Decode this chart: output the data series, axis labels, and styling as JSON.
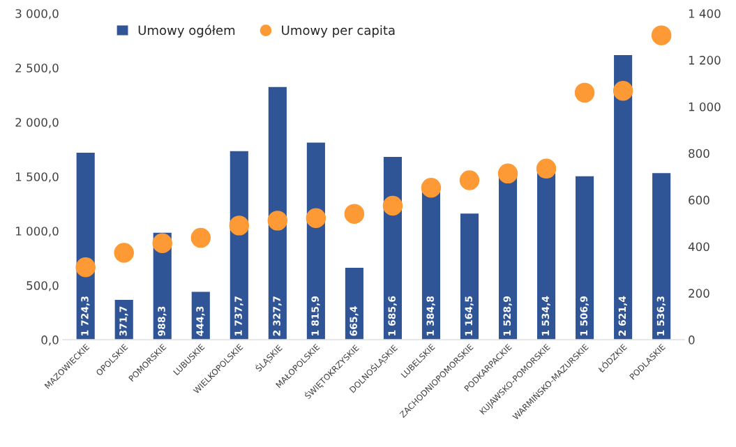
{
  "chart_data": {
    "type": "bar",
    "categories": [
      "MAZOWIECKIE",
      "OPOLSKIE",
      "POMORSKIE",
      "LUBUSKIE",
      "WIELKOPOLSKIE",
      "ŚLĄSKIE",
      "MAŁOPOLSKIE",
      "ŚWIĘTOKRZYSKIE",
      "DOLNOŚLĄSKIE",
      "LUBELSKIE",
      "ZACHODNIOPOMORSKIE",
      "PODKARPACKIE",
      "KUJAWSKO-POMORSKIE",
      "WARMIŃSKO-MAZURSKIE",
      "ŁÓDZKIE",
      "PODLASKIE"
    ],
    "series": [
      {
        "name": "Umowy ogółem",
        "color": "#2f5597",
        "values": [
          1724.3,
          371.7,
          988.3,
          444.3,
          1737.7,
          2327.7,
          1815.9,
          665.4,
          1685.6,
          1384.8,
          1164.5,
          1528.9,
          1534.4,
          1506.9,
          2621.4,
          1536.3
        ],
        "value_labels": [
          "1 724,3",
          "371,7",
          "988,3",
          "444,3",
          "1 737,7",
          "2 327,7",
          "1 815,9",
          "665,4",
          "1 685,6",
          "1 384,8",
          "1 164,5",
          "1 528,9",
          "1 534,4",
          "1 506,9",
          "2 621,4",
          "1 536,3"
        ]
      },
      {
        "name": "Umowy per capita",
        "type": "scatter",
        "axis": "y2",
        "color": "#fd9a35",
        "values": [
          311,
          373,
          414,
          437,
          490,
          511,
          522,
          540,
          575,
          652,
          684,
          713,
          734,
          1060,
          1068,
          1306
        ]
      }
    ],
    "ylim": [
      0,
      3000
    ],
    "yticks": [
      {
        "value": 0,
        "label": "0,0"
      },
      {
        "value": 500,
        "label": "500,0"
      },
      {
        "value": 1000,
        "label": "1 000,0"
      },
      {
        "value": 1500,
        "label": "1 500,0"
      },
      {
        "value": 2000,
        "label": "2 000,0"
      },
      {
        "value": 2500,
        "label": "2 500,0"
      },
      {
        "value": 3000,
        "label": "3 000,0"
      }
    ],
    "y2lim": [
      0,
      1400
    ],
    "y2ticks": [
      0,
      200,
      400,
      600,
      800,
      {
        "value": 1000,
        "label": "1 000"
      },
      {
        "value": 1200,
        "label": "1 200"
      },
      {
        "value": 1400,
        "label": "1 400"
      }
    ],
    "legend": "top left"
  }
}
